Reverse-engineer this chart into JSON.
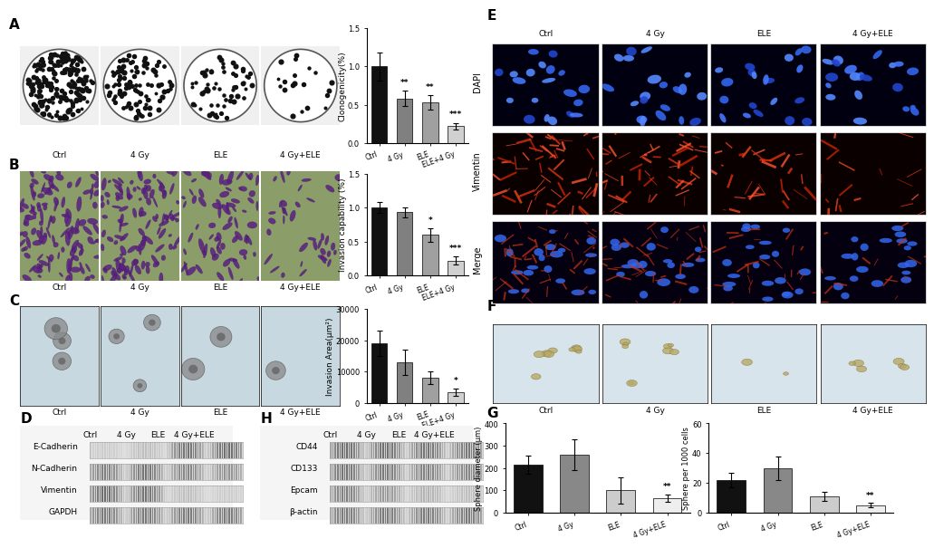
{
  "panel_A_bar": {
    "categories": [
      "Ctrl",
      "4 Gy",
      "ELE",
      "ELE+4 Gy"
    ],
    "values": [
      1.0,
      0.58,
      0.53,
      0.22
    ],
    "errors": [
      0.18,
      0.1,
      0.09,
      0.04
    ],
    "colors": [
      "#111111",
      "#808080",
      "#a0a0a0",
      "#d0d0d0"
    ],
    "ylabel": "Clonogenicity(%)",
    "ylim": [
      0,
      1.5
    ],
    "yticks": [
      0.0,
      0.5,
      1.0,
      1.5
    ],
    "sig_labels": [
      "",
      "**",
      "**",
      "***"
    ]
  },
  "panel_B_bar": {
    "categories": [
      "Ctrl",
      "4 Gy",
      "ELE",
      "ELE+4 Gy"
    ],
    "values": [
      1.0,
      0.93,
      0.6,
      0.22
    ],
    "errors": [
      0.08,
      0.07,
      0.1,
      0.06
    ],
    "colors": [
      "#111111",
      "#808080",
      "#a0a0a0",
      "#d0d0d0"
    ],
    "ylabel": "Invasion capability (%)",
    "ylim": [
      0,
      1.5
    ],
    "yticks": [
      0.0,
      0.5,
      1.0,
      1.5
    ],
    "sig_labels": [
      "",
      "",
      "*",
      "***"
    ]
  },
  "panel_C_bar": {
    "categories": [
      "Ctrl",
      "4 Gy",
      "ELE",
      "ELE+4 Gy"
    ],
    "values": [
      19000,
      13000,
      8000,
      3500
    ],
    "errors": [
      4000,
      4000,
      2000,
      1200
    ],
    "colors": [
      "#111111",
      "#808080",
      "#a0a0a0",
      "#d0d0d0"
    ],
    "ylabel": "Invasion Area(μm²)",
    "ylim": [
      0,
      30000
    ],
    "yticks": [
      0,
      10000,
      20000,
      30000
    ],
    "sig_labels": [
      "",
      "",
      "",
      "*"
    ]
  },
  "panel_G_diameter": {
    "categories": [
      "Ctrl",
      "4 Gy",
      "ELE",
      "4 Gy+ELE"
    ],
    "values": [
      215,
      260,
      100,
      65
    ],
    "errors": [
      40,
      70,
      60,
      18
    ],
    "colors": [
      "#111111",
      "#888888",
      "#cccccc",
      "#eeeeee"
    ],
    "ylabel": "Sphere diameter (μm)",
    "ylim": [
      0,
      400
    ],
    "yticks": [
      0,
      100,
      200,
      300,
      400
    ],
    "sig_labels": [
      "",
      "",
      "",
      "**"
    ]
  },
  "panel_G_number": {
    "categories": [
      "Ctrl",
      "4 Gy",
      "ELE",
      "4 Gy+ELE"
    ],
    "values": [
      22,
      30,
      11,
      5
    ],
    "errors": [
      5,
      8,
      3,
      1.5
    ],
    "colors": [
      "#111111",
      "#888888",
      "#cccccc",
      "#eeeeee"
    ],
    "ylabel": "Sphere per 1000 cells",
    "ylim": [
      0,
      60
    ],
    "yticks": [
      0,
      20,
      40,
      60
    ],
    "sig_labels": [
      "",
      "",
      "",
      "**"
    ]
  },
  "western_blot_labels_D": [
    "E-Cadherin",
    "N-Cadherin",
    "Vimentin",
    "GAPDH"
  ],
  "western_blot_labels_H": [
    "CD44",
    "CD133",
    "Epcam",
    "β-actin"
  ],
  "treatment_labels": [
    "Ctrl",
    "4 Gy",
    "ELE",
    "4 Gy+ELE"
  ],
  "col_labels_E": [
    "Ctrl",
    "4 Gy",
    "ELE",
    "4 Gy+ELE"
  ],
  "row_labels_E": [
    "DAPI",
    "Vimentin",
    "Merge"
  ],
  "background_color": "#ffffff"
}
